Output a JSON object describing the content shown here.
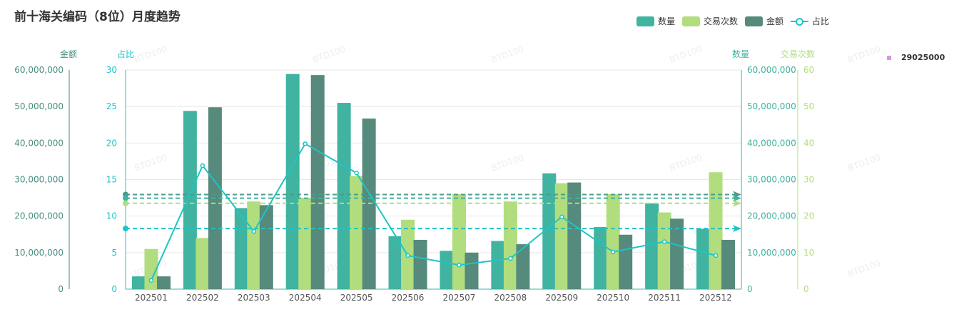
{
  "title": "前十海关编码（8位）月度趋势",
  "legend": [
    {
      "label": "数量",
      "color": "#40b3a1",
      "kind": "bar"
    },
    {
      "label": "交易次数",
      "color": "#b1dd7e",
      "kind": "bar"
    },
    {
      "label": "金额",
      "color": "#558a7c",
      "kind": "bar"
    },
    {
      "label": "占比",
      "color": "#1fc4c4",
      "kind": "line"
    }
  ],
  "side_legend": {
    "label": "29025000",
    "color": "#d59ae0"
  },
  "watermark": "BTD100",
  "chart_data": {
    "type": "bar",
    "categories": [
      "202501",
      "202502",
      "202503",
      "202504",
      "202505",
      "202506",
      "202507",
      "202508",
      "202509",
      "202510",
      "202511",
      "202512"
    ],
    "series": [
      {
        "name": "数量",
        "axis": "right_qty",
        "color": "#40b3a1",
        "values": [
          3500000,
          48800000,
          22200000,
          58900000,
          51000000,
          14500000,
          10500000,
          13200000,
          31700000,
          17000000,
          23500000,
          16500000
        ]
      },
      {
        "name": "交易次数",
        "axis": "right_count",
        "color": "#b1dd7e",
        "values": [
          11,
          14,
          24,
          25,
          31,
          19,
          26,
          24,
          29,
          26,
          21,
          32
        ]
      },
      {
        "name": "金额",
        "axis": "left_amount",
        "color": "#558a7c",
        "values": [
          3500000,
          49800000,
          23000000,
          58600000,
          46700000,
          13500000,
          10000000,
          12300000,
          29200000,
          14900000,
          19300000,
          13500000
        ]
      },
      {
        "name": "占比",
        "axis": "left_pct",
        "color": "#1fc4c4",
        "type": "line",
        "values": [
          1.2,
          16.9,
          7.9,
          19.9,
          15.9,
          4.6,
          3.3,
          4.2,
          9.9,
          5.1,
          6.5,
          4.6
        ]
      }
    ],
    "axes": {
      "left_amount": {
        "name": "金额",
        "min": 0,
        "max": 60000000,
        "ticks": [
          "0",
          "10,000,000",
          "20,000,000",
          "30,000,000",
          "40,000,000",
          "50,000,000",
          "60,000,000"
        ],
        "color": "#4a8f80"
      },
      "left_pct": {
        "name": "占比",
        "min": 0,
        "max": 30,
        "ticks": [
          "0",
          "5",
          "10",
          "15",
          "20",
          "25",
          "30"
        ],
        "color": "#1fc4c4"
      },
      "right_qty": {
        "name": "数量",
        "min": 0,
        "max": 60000000,
        "ticks": [
          "0",
          "10,000,000",
          "20,000,000",
          "30,000,000",
          "40,000,000",
          "50,000,000",
          "60,000,000"
        ],
        "color": "#40b3a1"
      },
      "right_count": {
        "name": "交易次数",
        "min": 0,
        "max": 60,
        "ticks": [
          "0",
          "10",
          "20",
          "30",
          "40",
          "50",
          "60"
        ],
        "color": "#b1dd7e"
      }
    },
    "mark_lines": [
      {
        "axis": "left_amount",
        "value": 25900000,
        "color": "#4e9a8a"
      },
      {
        "axis": "right_qty",
        "value": 24900000,
        "color": "#40b3a1"
      },
      {
        "axis": "right_count",
        "value": 23500000,
        "axis_value": 23.5,
        "color": "#b1dd7e"
      },
      {
        "axis": "left_pct",
        "value": 8.3,
        "color": "#1fc4c4"
      }
    ],
    "grid": true
  }
}
